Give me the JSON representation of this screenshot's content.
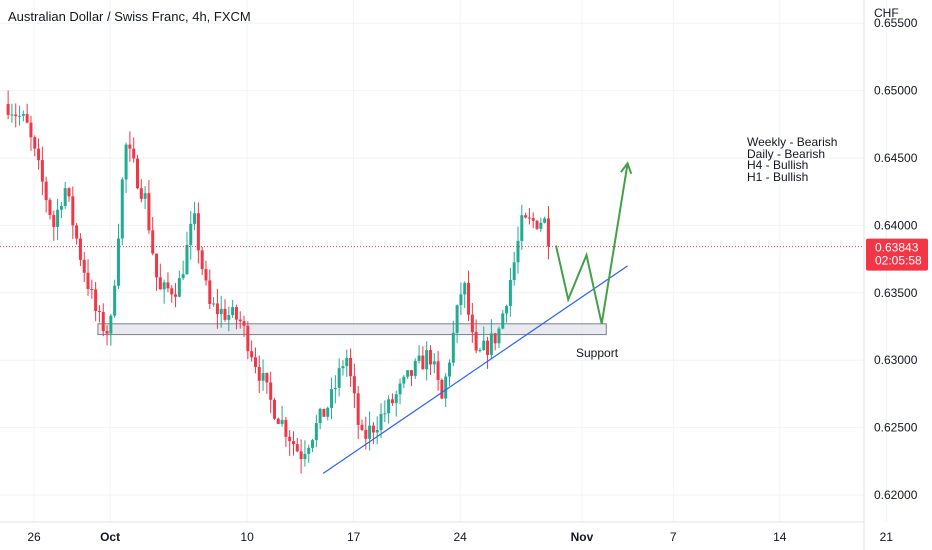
{
  "chart_data": {
    "type": "candlestick",
    "title": "Australian Dollar / Swiss Franc, 4h, FXCM",
    "currency": "CHF",
    "y_ticks": [
      "0.65500",
      "0.65000",
      "0.64500",
      "0.64000",
      "0.63500",
      "0.63000",
      "0.62500",
      "0.62000"
    ],
    "y_tick_values": [
      0.655,
      0.65,
      0.645,
      0.64,
      0.635,
      0.63,
      0.625,
      0.62
    ],
    "x_ticks": [
      {
        "label": "26",
        "day": 26,
        "bold": false
      },
      {
        "label": "Oct",
        "day": 31,
        "bold": true
      },
      {
        "label": "10",
        "day": 40,
        "bold": false
      },
      {
        "label": "17",
        "day": 47,
        "bold": false
      },
      {
        "label": "24",
        "day": 54,
        "bold": false
      },
      {
        "label": "Nov",
        "day": 62,
        "bold": true
      },
      {
        "label": "7",
        "day": 68,
        "bold": false
      },
      {
        "label": "14",
        "day": 75,
        "bold": false
      },
      {
        "label": "21",
        "day": 82,
        "bold": false
      }
    ],
    "ylim": [
      0.6183,
      0.6564
    ],
    "xlim": [
      24.3,
      84.5
    ],
    "last_price": "0.63843",
    "last_price_value": 0.63843,
    "countdown": "02:05:58",
    "anchors": [
      {
        "day": 24.3,
        "price": 0.649
      },
      {
        "day": 25.5,
        "price": 0.6475
      },
      {
        "day": 27.3,
        "price": 0.64
      },
      {
        "day": 28.0,
        "price": 0.643
      },
      {
        "day": 29.0,
        "price": 0.638
      },
      {
        "day": 30.2,
        "price": 0.633
      },
      {
        "day": 31.0,
        "price": 0.632
      },
      {
        "day": 32.0,
        "price": 0.646
      },
      {
        "day": 33.3,
        "price": 0.642
      },
      {
        "day": 34.2,
        "price": 0.635
      },
      {
        "day": 35.5,
        "price": 0.6355
      },
      {
        "day": 36.5,
        "price": 0.6405
      },
      {
        "day": 37.5,
        "price": 0.634
      },
      {
        "day": 39.5,
        "price": 0.633
      },
      {
        "day": 40.2,
        "price": 0.631
      },
      {
        "day": 41.5,
        "price": 0.627
      },
      {
        "day": 43.5,
        "price": 0.623
      },
      {
        "day": 45.5,
        "price": 0.627
      },
      {
        "day": 46.5,
        "price": 0.6305
      },
      {
        "day": 47.5,
        "price": 0.624
      },
      {
        "day": 49.3,
        "price": 0.6265
      },
      {
        "day": 50.8,
        "price": 0.629
      },
      {
        "day": 52.0,
        "price": 0.6305
      },
      {
        "day": 52.8,
        "price": 0.627
      },
      {
        "day": 54.2,
        "price": 0.636
      },
      {
        "day": 55.0,
        "price": 0.63
      },
      {
        "day": 56.5,
        "price": 0.632
      },
      {
        "day": 57.7,
        "price": 0.638
      },
      {
        "day": 58.0,
        "price": 0.64
      },
      {
        "day": 59.5,
        "price": 0.6405
      },
      {
        "day": 60.0,
        "price": 0.6384
      }
    ],
    "support_zone": {
      "day_start": 30.2,
      "day_end": 63.6,
      "price_low": 0.6319,
      "price_high": 0.6327,
      "label": "Support"
    },
    "trendline": {
      "start": {
        "day": 45.0,
        "price": 0.6216
      },
      "end": {
        "day": 65.0,
        "price": 0.637
      }
    },
    "projection_path": [
      {
        "day": 60.3,
        "price": 0.6385
      },
      {
        "day": 61.1,
        "price": 0.6345
      },
      {
        "day": 62.3,
        "price": 0.6378
      },
      {
        "day": 63.3,
        "price": 0.6327
      },
      {
        "day": 65.0,
        "price": 0.6446
      }
    ],
    "notes": [
      "Weekly - Bearish",
      "Daily - Bearish",
      "H4 - Bullish",
      "H1 - Bullish"
    ],
    "colors": {
      "up": "#22ab94",
      "down": "#f23645",
      "trend": "#2962ff",
      "projection": "#43a047",
      "price_tag": "#f23645",
      "grid": "#f0f3fa"
    }
  }
}
